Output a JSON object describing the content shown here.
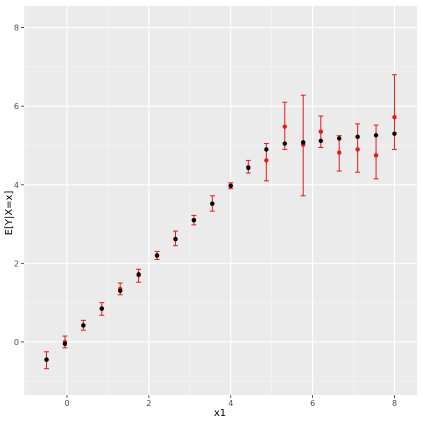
{
  "chart_data": {
    "type": "scatter",
    "title": "",
    "xlabel": "x1",
    "ylabel": "E[Y|X=x]",
    "xlim": [
      -1.05,
      8.55
    ],
    "ylim": [
      -1.35,
      8.55
    ],
    "x_ticks": [
      0,
      2,
      4,
      6,
      8
    ],
    "x_tick_labels": [
      "0",
      "2",
      "4",
      "6",
      "8"
    ],
    "y_ticks": [
      0,
      2,
      4,
      6,
      8
    ],
    "y_tick_labels": [
      "0",
      "2",
      "4",
      "6",
      "8"
    ],
    "grid": true,
    "legend": "none",
    "series": [
      {
        "color": "#000000",
        "points": [
          {
            "x": -0.5,
            "y": -0.45
          },
          {
            "x": -0.05,
            "y": -0.05
          },
          {
            "x": 0.4,
            "y": 0.42
          },
          {
            "x": 0.85,
            "y": 0.85
          },
          {
            "x": 1.3,
            "y": 1.3
          },
          {
            "x": 1.75,
            "y": 1.72
          },
          {
            "x": 2.2,
            "y": 2.2
          },
          {
            "x": 2.65,
            "y": 2.62
          },
          {
            "x": 3.1,
            "y": 3.1
          },
          {
            "x": 3.55,
            "y": 3.52
          },
          {
            "x": 4.0,
            "y": 3.97
          },
          {
            "x": 4.43,
            "y": 4.43
          },
          {
            "x": 4.87,
            "y": 4.9
          },
          {
            "x": 5.32,
            "y": 5.05
          },
          {
            "x": 5.77,
            "y": 5.08
          },
          {
            "x": 6.2,
            "y": 5.12
          },
          {
            "x": 6.65,
            "y": 5.18
          },
          {
            "x": 7.1,
            "y": 5.22
          },
          {
            "x": 7.55,
            "y": 5.26
          },
          {
            "x": 8.0,
            "y": 5.3
          }
        ]
      },
      {
        "color": "#e41a1c",
        "points": [
          {
            "x": -0.5,
            "y": -0.45,
            "lo": -0.68,
            "hi": -0.25
          },
          {
            "x": -0.05,
            "y": 0.0,
            "lo": -0.15,
            "hi": 0.15
          },
          {
            "x": 0.4,
            "y": 0.42,
            "lo": 0.3,
            "hi": 0.55
          },
          {
            "x": 0.85,
            "y": 0.85,
            "lo": 0.68,
            "hi": 1.0
          },
          {
            "x": 1.3,
            "y": 1.35,
            "lo": 1.2,
            "hi": 1.5
          },
          {
            "x": 1.75,
            "y": 1.7,
            "lo": 1.52,
            "hi": 1.85
          },
          {
            "x": 2.2,
            "y": 2.2,
            "lo": 2.1,
            "hi": 2.3
          },
          {
            "x": 2.65,
            "y": 2.62,
            "lo": 2.45,
            "hi": 2.82
          },
          {
            "x": 3.1,
            "y": 3.1,
            "lo": 2.98,
            "hi": 3.22
          },
          {
            "x": 3.55,
            "y": 3.52,
            "lo": 3.33,
            "hi": 3.72
          },
          {
            "x": 4.0,
            "y": 3.98,
            "lo": 3.9,
            "hi": 4.05
          },
          {
            "x": 4.43,
            "y": 4.45,
            "lo": 4.3,
            "hi": 4.62
          },
          {
            "x": 4.87,
            "y": 4.62,
            "lo": 4.1,
            "hi": 5.05
          },
          {
            "x": 5.32,
            "y": 5.48,
            "lo": 4.9,
            "hi": 6.1
          },
          {
            "x": 5.77,
            "y": 5.02,
            "lo": 3.72,
            "hi": 6.28
          },
          {
            "x": 6.2,
            "y": 5.35,
            "lo": 4.95,
            "hi": 5.75
          },
          {
            "x": 6.65,
            "y": 4.82,
            "lo": 4.35,
            "hi": 5.25
          },
          {
            "x": 7.1,
            "y": 4.9,
            "lo": 4.32,
            "hi": 5.55
          },
          {
            "x": 7.55,
            "y": 4.75,
            "lo": 4.15,
            "hi": 5.52
          },
          {
            "x": 8.0,
            "y": 5.72,
            "lo": 4.9,
            "hi": 6.8
          }
        ]
      }
    ]
  }
}
